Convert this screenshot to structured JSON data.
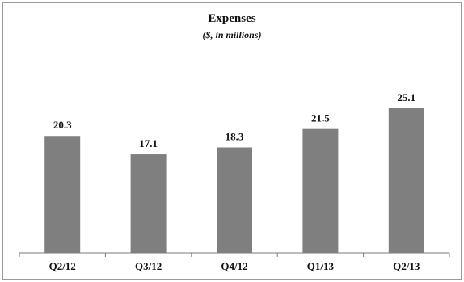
{
  "chart_data": {
    "type": "bar",
    "title": "Expenses",
    "subtitle": "($, in millions)",
    "categories": [
      "Q2/12",
      "Q3/12",
      "Q4/12",
      "Q1/13",
      "Q2/13"
    ],
    "values": [
      20.3,
      17.1,
      18.3,
      21.5,
      25.1
    ],
    "value_labels": [
      "20.3",
      "17.1",
      "18.3",
      "21.5",
      "25.1"
    ],
    "xlabel": "",
    "ylabel": "",
    "ylim": [
      0,
      30
    ],
    "grid": false,
    "legend": "none",
    "bar_color": "#7f7f7f"
  }
}
